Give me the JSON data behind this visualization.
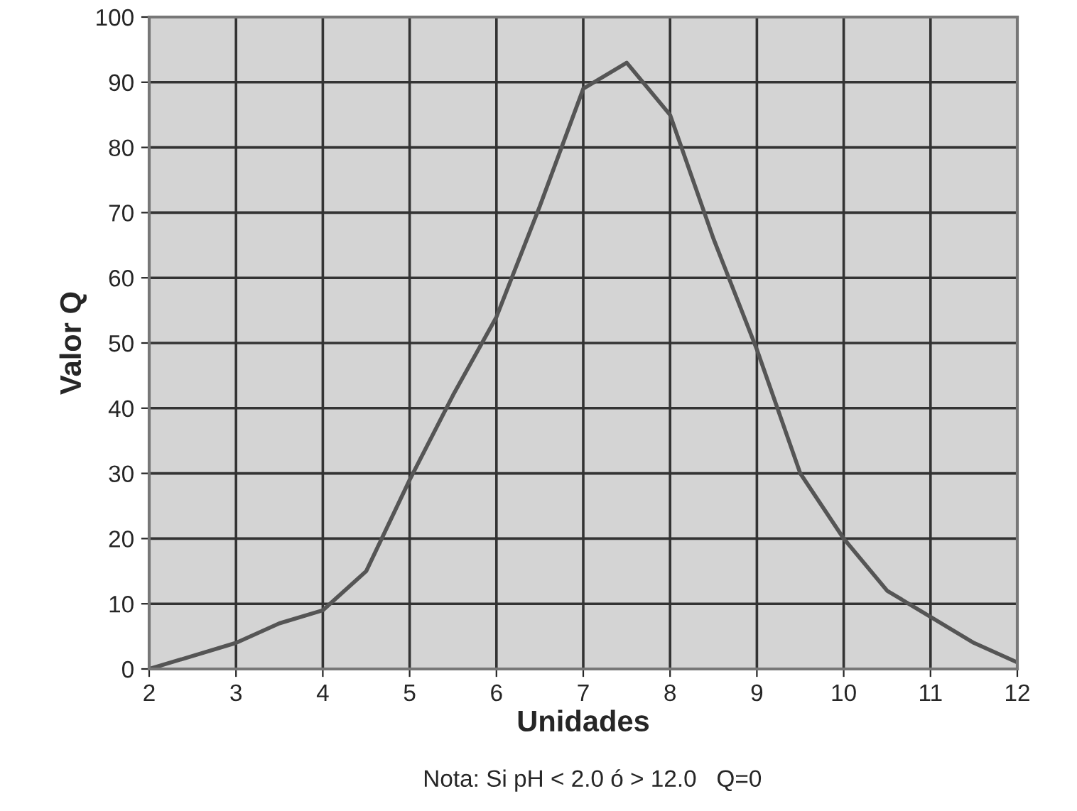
{
  "chart_data": {
    "type": "line",
    "xlabel": "Unidades",
    "ylabel": "Valor Q",
    "annotations": [
      "Nota: Si pH < 2.0 ó > 12.0   Q=0"
    ],
    "x": [
      2,
      3,
      3.5,
      4,
      4.5,
      5,
      5.5,
      6,
      6.5,
      7,
      7.5,
      8,
      8.5,
      9,
      9.5,
      10,
      10.5,
      11,
      11.5,
      12
    ],
    "series": [
      {
        "color": "#555555",
        "values": [
          0,
          4,
          7,
          9,
          15,
          29,
          42,
          54,
          71,
          89,
          93,
          85,
          66,
          49,
          30,
          20,
          12,
          8,
          4,
          1
        ]
      }
    ],
    "xlim": [
      2,
      12
    ],
    "ylim": [
      0,
      100
    ],
    "xticks": [
      2,
      3,
      4,
      5,
      6,
      7,
      8,
      9,
      10,
      11,
      12
    ],
    "yticks": [
      0,
      10,
      20,
      30,
      40,
      50,
      60,
      70,
      80,
      90,
      100
    ],
    "grid": true,
    "legend": false,
    "marker": "none",
    "line_style": "solid"
  }
}
